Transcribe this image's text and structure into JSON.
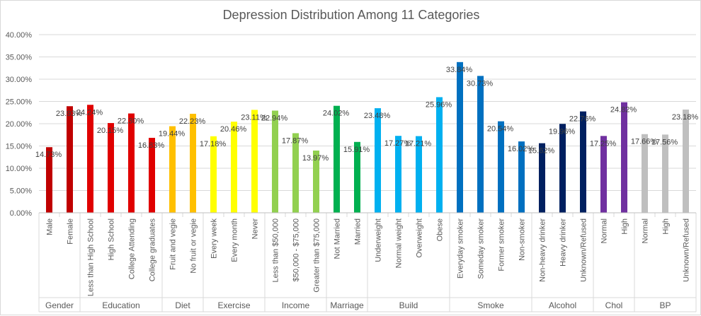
{
  "chart_data": {
    "type": "bar",
    "title": "Depression Distribution Among 11 Categories",
    "xlabel": "",
    "ylabel": "",
    "ylim": [
      0,
      40
    ],
    "y_ticks": [
      "0.00%",
      "5.00%",
      "10.00%",
      "15.00%",
      "20.00%",
      "25.00%",
      "30.00%",
      "35.00%",
      "40.00%"
    ],
    "grid": true,
    "legend": "none",
    "groups": [
      {
        "name": "Gender",
        "bars": [
          {
            "label": "Male",
            "value": 14.73,
            "text": "14.73%",
            "color": "#c00000"
          },
          {
            "label": "Female",
            "value": 23.93,
            "text": "23.93%",
            "color": "#c00000"
          }
        ]
      },
      {
        "name": "Education",
        "bars": [
          {
            "label": "Less than High School",
            "value": 24.24,
            "text": "24.24%",
            "color": "#e00000"
          },
          {
            "label": "High School",
            "value": 20.15,
            "text": "20.15%",
            "color": "#e00000"
          },
          {
            "label": "College Attending",
            "value": 22.3,
            "text": "22.30%",
            "color": "#e00000"
          },
          {
            "label": "College graduates",
            "value": 16.83,
            "text": "16.83%",
            "color": "#e00000"
          }
        ]
      },
      {
        "name": "Diet",
        "bars": [
          {
            "label": "Fruit and vegie",
            "value": 19.44,
            "text": "19.44%",
            "color": "#ffc000"
          },
          {
            "label": "No fruit or vegie",
            "value": 22.23,
            "text": "22.23%",
            "color": "#ffc000"
          }
        ]
      },
      {
        "name": "Exercise",
        "bars": [
          {
            "label": "Every week",
            "value": 17.18,
            "text": "17.18%",
            "color": "#ffff00"
          },
          {
            "label": "Every month",
            "value": 20.46,
            "text": "20.46%",
            "color": "#ffff00"
          },
          {
            "label": "Never",
            "value": 23.11,
            "text": "23.11%",
            "color": "#ffff00"
          }
        ]
      },
      {
        "name": "Income",
        "bars": [
          {
            "label": "Less than $50,000",
            "value": 22.94,
            "text": "22.94%",
            "color": "#92d050"
          },
          {
            "label": "$50,000 - $75,000",
            "value": 17.87,
            "text": "17.87%",
            "color": "#92d050"
          },
          {
            "label": "Greater than $75,000",
            "value": 13.97,
            "text": "13.97%",
            "color": "#92d050"
          }
        ]
      },
      {
        "name": "Marriage",
        "bars": [
          {
            "label": "Not Married",
            "value": 24.02,
            "text": "24.02%",
            "color": "#00b050"
          },
          {
            "label": "Married",
            "value": 15.91,
            "text": "15.91%",
            "color": "#00b050"
          }
        ]
      },
      {
        "name": "Build",
        "bars": [
          {
            "label": "Underweight",
            "value": 23.48,
            "text": "23.48%",
            "color": "#00b0f0"
          },
          {
            "label": "Normal weight",
            "value": 17.27,
            "text": "17.27%",
            "color": "#00b0f0"
          },
          {
            "label": "Overweight",
            "value": 17.21,
            "text": "17.21%",
            "color": "#00b0f0"
          },
          {
            "label": "Obese",
            "value": 25.96,
            "text": "25.96%",
            "color": "#00b0f0"
          }
        ]
      },
      {
        "name": "Smoke",
        "bars": [
          {
            "label": "Everyday smoker",
            "value": 33.84,
            "text": "33.84%",
            "color": "#0070c0"
          },
          {
            "label": "Someday smoker",
            "value": 30.73,
            "text": "30.73%",
            "color": "#0070c0"
          },
          {
            "label": "Former smoker",
            "value": 20.54,
            "text": "20.54%",
            "color": "#0070c0"
          },
          {
            "label": "Non-smoker",
            "value": 16.02,
            "text": "16.02%",
            "color": "#0070c0"
          }
        ]
      },
      {
        "name": "Alcohol",
        "bars": [
          {
            "label": "Non-heavy drinker",
            "value": 15.62,
            "text": "15.62%",
            "color": "#002060"
          },
          {
            "label": "Heavy drinker",
            "value": 19.96,
            "text": "19.96%",
            "color": "#002060"
          },
          {
            "label": "Unknown/Refused",
            "value": 22.76,
            "text": "22.76%",
            "color": "#002060"
          }
        ]
      },
      {
        "name": "Chol",
        "bars": [
          {
            "label": "Normal",
            "value": 17.25,
            "text": "17.25%",
            "color": "#7030a0"
          },
          {
            "label": "High",
            "value": 24.82,
            "text": "24.82%",
            "color": "#7030a0"
          }
        ]
      },
      {
        "name": "BP",
        "bars": [
          {
            "label": "Normal",
            "value": 17.66,
            "text": "17.66%",
            "color": "#bfbfbf"
          },
          {
            "label": "High",
            "value": 17.56,
            "text": "17.56%",
            "color": "#bfbfbf"
          },
          {
            "label": "Unknown/Refused",
            "value": 23.18,
            "text": "23.18%",
            "color": "#bfbfbf"
          }
        ]
      }
    ]
  }
}
